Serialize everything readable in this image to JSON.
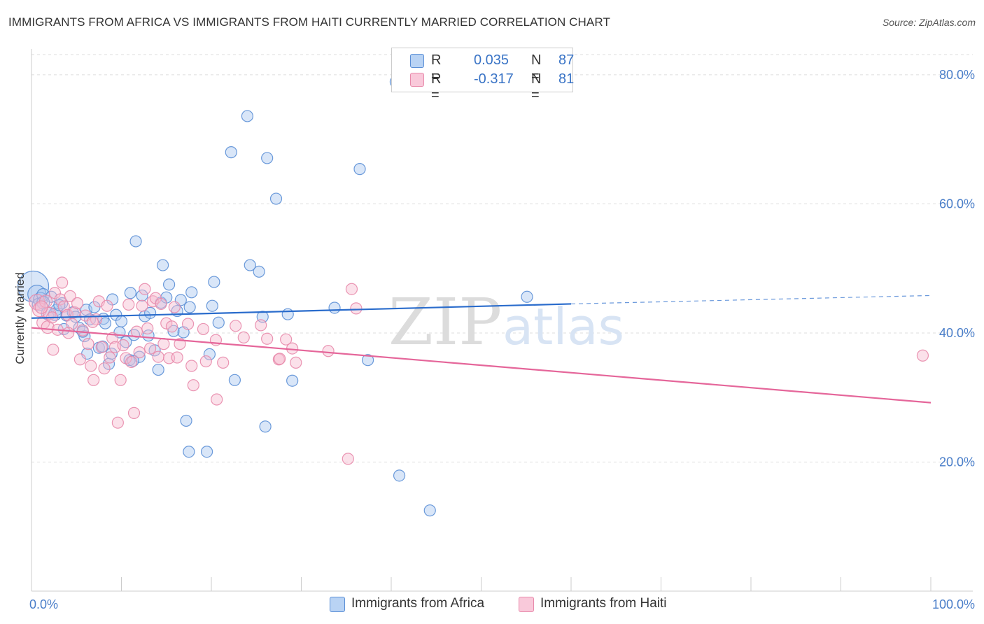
{
  "title": "IMMIGRANTS FROM AFRICA VS IMMIGRANTS FROM HAITI CURRENTLY MARRIED CORRELATION CHART",
  "source": "Source: ZipAtlas.com",
  "watermark": {
    "zip": "ZIP",
    "atlas": "atlas"
  },
  "colors": {
    "africa_fill": "#aac8f0",
    "africa_stroke": "#5b8fd6",
    "africa_line": "#2a6ccc",
    "haiti_fill": "#f7bcd0",
    "haiti_stroke": "#e88aab",
    "haiti_line": "#e5669a",
    "tick_text": "#4a7ec9",
    "grid": "#dddddd"
  },
  "legend": {
    "rows": [
      {
        "r_label": "R =",
        "r_value": "0.035",
        "n_label": "N =",
        "n_value": "87"
      },
      {
        "r_label": "R =",
        "r_value": "-0.317",
        "n_label": "N =",
        "n_value": "81"
      }
    ]
  },
  "bottom_legend": [
    {
      "label": "Immigrants from Africa"
    },
    {
      "label": "Immigrants from Haiti"
    }
  ],
  "chart_data": {
    "type": "scatter",
    "title": "IMMIGRANTS FROM AFRICA VS IMMIGRANTS FROM HAITI CURRENTLY MARRIED CORRELATION CHART",
    "xlabel": "",
    "ylabel": "Currently Married",
    "xlim": [
      0,
      100
    ],
    "ylim": [
      0,
      84
    ],
    "x_tick_labels": [
      "0.0%",
      "100.0%"
    ],
    "y_ticks": [
      {
        "value": 20,
        "label": "20.0%"
      },
      {
        "value": 40,
        "label": "40.0%"
      },
      {
        "value": 60,
        "label": "60.0%"
      },
      {
        "value": 80,
        "label": "80.0%"
      }
    ],
    "grid": true,
    "legend_position": "top-center",
    "series": [
      {
        "name": "Immigrants from Africa",
        "r": 0.035,
        "n": 87,
        "trend": {
          "x0": 0,
          "y0": 42.3,
          "x1": 60,
          "y1": 44.5,
          "dash_x1": 100,
          "dash_y1": 45.8
        },
        "points": [
          [
            0.2,
            47.2,
            22
          ],
          [
            0.6,
            46.0,
            13
          ],
          [
            1.0,
            45.2,
            10
          ],
          [
            1.3,
            45.9,
            9
          ],
          [
            0.8,
            44.4,
            9
          ],
          [
            1.8,
            43.0,
            9
          ],
          [
            2.2,
            45.6,
            8
          ],
          [
            2.8,
            43.6,
            8
          ],
          [
            3.4,
            44.6,
            8
          ],
          [
            3.9,
            42.7,
            8
          ],
          [
            3.6,
            40.6,
            8
          ],
          [
            4.6,
            43.2,
            8
          ],
          [
            5.3,
            40.8,
            8
          ],
          [
            5.9,
            39.5,
            8
          ],
          [
            6.1,
            43.6,
            8
          ],
          [
            6.5,
            42.1,
            8
          ],
          [
            7.0,
            44.0,
            8
          ],
          [
            7.5,
            37.7,
            8
          ],
          [
            8.0,
            42.2,
            8
          ],
          [
            8.6,
            35.2,
            8
          ],
          [
            8.9,
            36.8,
            8
          ],
          [
            9.0,
            45.2,
            8
          ],
          [
            9.4,
            42.8,
            8
          ],
          [
            9.8,
            40.1,
            8
          ],
          [
            10.0,
            41.8,
            8
          ],
          [
            10.5,
            38.6,
            8
          ],
          [
            10.9,
            35.8,
            8
          ],
          [
            11.0,
            46.2,
            8
          ],
          [
            11.4,
            39.7,
            8
          ],
          [
            11.6,
            54.2,
            8
          ],
          [
            12.0,
            36.3,
            8
          ],
          [
            12.3,
            45.8,
            8
          ],
          [
            12.6,
            42.6,
            8
          ],
          [
            13.0,
            39.6,
            8
          ],
          [
            13.2,
            43.1,
            8
          ],
          [
            13.7,
            37.3,
            8
          ],
          [
            14.1,
            34.3,
            8
          ],
          [
            14.4,
            44.7,
            8
          ],
          [
            14.6,
            50.5,
            8
          ],
          [
            15.0,
            45.5,
            8
          ],
          [
            15.3,
            47.5,
            8
          ],
          [
            15.8,
            40.3,
            8
          ],
          [
            16.2,
            43.4,
            8
          ],
          [
            16.6,
            45.1,
            8
          ],
          [
            16.9,
            40.1,
            8
          ],
          [
            17.2,
            26.4,
            8
          ],
          [
            17.6,
            44.0,
            8
          ],
          [
            17.8,
            46.3,
            8
          ],
          [
            17.5,
            21.6,
            8
          ],
          [
            19.5,
            21.6,
            8
          ],
          [
            19.8,
            36.7,
            8
          ],
          [
            20.1,
            44.2,
            8
          ],
          [
            20.3,
            47.9,
            8
          ],
          [
            20.8,
            41.6,
            8
          ],
          [
            22.2,
            68.0,
            8
          ],
          [
            22.6,
            32.7,
            8
          ],
          [
            24.0,
            73.6,
            8
          ],
          [
            24.3,
            50.5,
            8
          ],
          [
            25.3,
            49.5,
            8
          ],
          [
            25.7,
            42.5,
            8
          ],
          [
            26.0,
            25.5,
            8
          ],
          [
            26.2,
            67.1,
            8
          ],
          [
            27.2,
            60.8,
            8
          ],
          [
            28.5,
            42.9,
            8
          ],
          [
            29.0,
            32.6,
            8
          ],
          [
            33.7,
            43.9,
            8
          ],
          [
            36.5,
            65.4,
            8
          ],
          [
            37.4,
            35.8,
            8
          ],
          [
            40.5,
            78.9,
            8
          ],
          [
            40.9,
            17.9,
            8
          ],
          [
            44.3,
            12.5,
            8
          ],
          [
            55.1,
            45.6,
            8
          ],
          [
            1.3,
            44.7,
            9
          ],
          [
            2.6,
            42.9,
            9
          ],
          [
            4.9,
            42.5,
            8
          ],
          [
            6.2,
            36.8,
            8
          ],
          [
            7.9,
            37.9,
            8
          ],
          [
            11.3,
            35.7,
            8
          ],
          [
            3.1,
            44.3,
            8
          ],
          [
            5.7,
            40.2,
            8
          ],
          [
            8.2,
            41.5,
            8
          ]
        ]
      },
      {
        "name": "Immigrants from Haiti",
        "r": -0.317,
        "n": 81,
        "trend": {
          "x0": 0,
          "y0": 40.8,
          "x1": 100,
          "y1": 29.2
        },
        "points": [
          [
            0.6,
            44.8,
            11
          ],
          [
            0.9,
            43.6,
            10
          ],
          [
            1.3,
            41.6,
            9
          ],
          [
            1.6,
            44.9,
            9
          ],
          [
            1.8,
            40.9,
            9
          ],
          [
            2.0,
            43.0,
            9
          ],
          [
            2.4,
            37.4,
            8
          ],
          [
            2.6,
            46.2,
            8
          ],
          [
            2.9,
            40.5,
            8
          ],
          [
            3.2,
            45.2,
            8
          ],
          [
            3.4,
            47.8,
            8
          ],
          [
            3.6,
            44.1,
            8
          ],
          [
            4.0,
            42.8,
            8
          ],
          [
            4.3,
            45.7,
            8
          ],
          [
            4.5,
            41.4,
            8
          ],
          [
            4.8,
            43.2,
            8
          ],
          [
            5.1,
            44.6,
            8
          ],
          [
            5.4,
            35.9,
            8
          ],
          [
            5.7,
            40.4,
            8
          ],
          [
            6.0,
            42.7,
            8
          ],
          [
            6.3,
            38.3,
            8
          ],
          [
            6.6,
            34.9,
            8
          ],
          [
            6.9,
            32.7,
            8
          ],
          [
            7.2,
            42.1,
            8
          ],
          [
            7.5,
            44.9,
            8
          ],
          [
            7.8,
            37.8,
            8
          ],
          [
            8.1,
            34.5,
            8
          ],
          [
            8.4,
            44.2,
            8
          ],
          [
            8.7,
            36.2,
            8
          ],
          [
            9.0,
            39.2,
            8
          ],
          [
            9.3,
            37.8,
            8
          ],
          [
            9.6,
            26.1,
            8
          ],
          [
            9.9,
            32.7,
            8
          ],
          [
            10.2,
            38.1,
            8
          ],
          [
            10.5,
            36.1,
            8
          ],
          [
            10.8,
            44.4,
            8
          ],
          [
            11.1,
            35.5,
            8
          ],
          [
            11.4,
            27.6,
            8
          ],
          [
            11.7,
            40.2,
            8
          ],
          [
            12.0,
            37.0,
            8
          ],
          [
            12.3,
            44.2,
            8
          ],
          [
            12.6,
            46.8,
            8
          ],
          [
            12.9,
            40.7,
            8
          ],
          [
            13.2,
            37.6,
            8
          ],
          [
            13.5,
            44.9,
            8
          ],
          [
            13.8,
            45.4,
            8
          ],
          [
            14.1,
            36.3,
            8
          ],
          [
            14.4,
            44.5,
            8
          ],
          [
            14.7,
            38.3,
            8
          ],
          [
            15.0,
            41.5,
            8
          ],
          [
            15.3,
            36.1,
            8
          ],
          [
            15.6,
            41.0,
            8
          ],
          [
            15.9,
            44.0,
            8
          ],
          [
            16.2,
            36.2,
            8
          ],
          [
            16.5,
            38.3,
            8
          ],
          [
            17.4,
            41.4,
            8
          ],
          [
            17.8,
            34.9,
            8
          ],
          [
            18.0,
            31.9,
            8
          ],
          [
            19.1,
            40.6,
            8
          ],
          [
            19.4,
            35.6,
            8
          ],
          [
            20.5,
            38.9,
            8
          ],
          [
            21.3,
            35.4,
            8
          ],
          [
            20.6,
            29.7,
            8
          ],
          [
            22.7,
            41.1,
            8
          ],
          [
            23.6,
            39.3,
            8
          ],
          [
            25.5,
            41.2,
            8
          ],
          [
            26.2,
            39.1,
            8
          ],
          [
            27.5,
            35.9,
            8
          ],
          [
            27.6,
            36.0,
            8
          ],
          [
            28.3,
            39.0,
            8
          ],
          [
            29.0,
            37.6,
            8
          ],
          [
            29.4,
            35.4,
            8
          ],
          [
            33.0,
            37.2,
            8
          ],
          [
            35.2,
            20.5,
            8
          ],
          [
            35.6,
            46.8,
            8
          ],
          [
            36.1,
            43.8,
            8
          ],
          [
            99.1,
            36.5,
            8
          ],
          [
            1.1,
            44.0,
            9
          ],
          [
            2.3,
            42.4,
            8
          ],
          [
            4.1,
            40.0,
            8
          ],
          [
            6.8,
            41.7,
            8
          ]
        ]
      }
    ]
  }
}
